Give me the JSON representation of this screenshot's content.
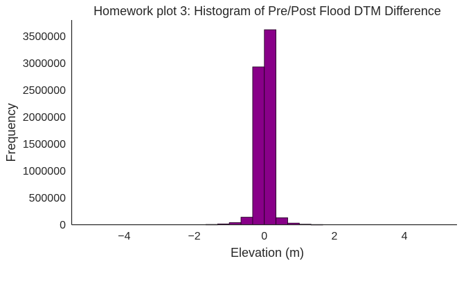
{
  "chart_data": {
    "type": "bar",
    "title": "Homework plot 3: Histogram of Pre/Post Flood DTM Difference",
    "xlabel": "Elevation (m)",
    "ylabel": "Frequency",
    "xlim": [
      -5.5,
      5.5
    ],
    "ylim": [
      0,
      3800000
    ],
    "xticks": [
      -4,
      -2,
      0,
      2,
      4
    ],
    "xtick_labels": [
      "−4",
      "−2",
      "0",
      "2",
      "4"
    ],
    "yticks": [
      0,
      500000,
      1000000,
      1500000,
      2000000,
      2500000,
      3000000,
      3500000
    ],
    "ytick_labels": [
      "0",
      "500000",
      "1000000",
      "1500000",
      "2000000",
      "2500000",
      "3000000",
      "3500000"
    ],
    "bin_edges": [
      -5.0,
      -4.667,
      -4.333,
      -4.0,
      -3.667,
      -3.333,
      -3.0,
      -2.667,
      -2.333,
      -2.0,
      -1.667,
      -1.333,
      -1.0,
      -0.667,
      -0.333,
      0.0,
      0.333,
      0.667,
      1.0,
      1.333,
      1.667,
      2.0,
      2.333,
      2.667,
      3.0,
      3.333,
      3.667,
      4.0,
      4.333,
      4.667,
      5.0
    ],
    "values": [
      0,
      0,
      0,
      0,
      0,
      0,
      0,
      0,
      0,
      0,
      5000,
      15000,
      40000,
      140000,
      2930000,
      3620000,
      130000,
      30000,
      10000,
      3000,
      0,
      0,
      0,
      0,
      0,
      0,
      0,
      0,
      0,
      0
    ],
    "grid": false,
    "colors": {
      "bar_fill": "#880088",
      "bar_edge": "#1a001a",
      "axis": "#262626",
      "text": "#262626"
    }
  }
}
